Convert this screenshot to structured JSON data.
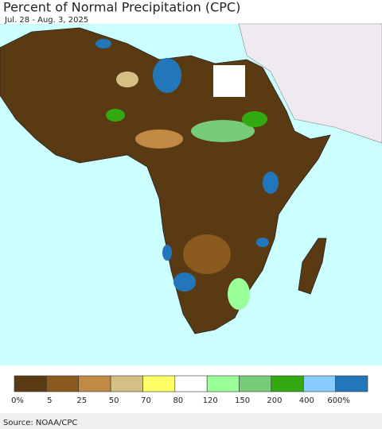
{
  "title": "Percent of Normal Precipitation (CPC)",
  "subtitle": "Jul. 28 - Aug. 3, 2025",
  "legend": {
    "labels": [
      "0%",
      "5",
      "25",
      "50",
      "70",
      "80",
      "120",
      "150",
      "200",
      "400",
      "600%"
    ],
    "colors": [
      "#5a3a12",
      "#8b5a1f",
      "#c08a45",
      "#d4bf85",
      "#ffff66",
      "#ffffff",
      "#99ff99",
      "#77cc77",
      "#33aa11",
      "#88ccff",
      "#2277bb"
    ]
  },
  "source": "Source: NOAA/CPC"
}
